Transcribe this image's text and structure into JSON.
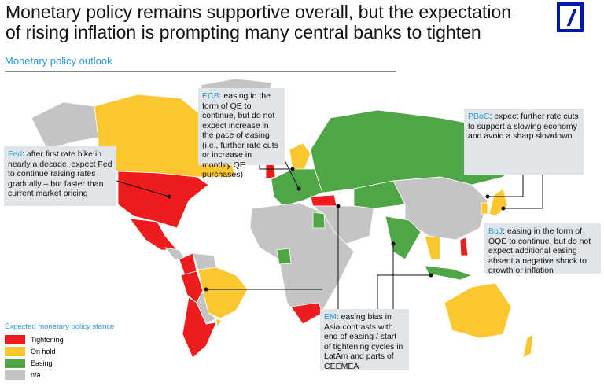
{
  "header": {
    "title": "Monetary policy remains supportive overall, but the expectation of rising inflation is prompting many central banks to tighten",
    "subtitle": "Monetary policy outlook"
  },
  "colors": {
    "tightening": "#ee1c1c",
    "on_hold": "#fcc631",
    "easing": "#4ea646",
    "na": "#c4c4c4",
    "accent": "#2a9bd8",
    "logo": "#0018a8"
  },
  "callouts": {
    "ecb": {
      "key": "ECB",
      "text": ": easing in the form of QE to continue, but do not expect increase in the pace of easing (i.e., further rate cuts or increase in monthly QE purchases)"
    },
    "fed": {
      "key": "Fed",
      "text": ": after first rate hike in nearly a decade, expect Fed to continue raising rates gradually – but faster than current market pricing"
    },
    "pboc": {
      "key": "PBoC",
      "text": ": expect further rate cuts to support a slowing economy and avoid a sharp slowdown"
    },
    "boj": {
      "key": "BoJ",
      "text": ": easing in the form of QQE to continue, but do not expect additional easing absent a negative shock to growth or inflation"
    },
    "em": {
      "key": "EM",
      "text": ": easing bias in Asia contrasts with end of easing / start of tightening cycles in LatAm and parts of CEEMEA"
    }
  },
  "legend": {
    "title": "Expected monetary policy stance",
    "items": [
      {
        "label": "Tightening",
        "color": "#ee1c1c"
      },
      {
        "label": "On hold",
        "color": "#fcc631"
      },
      {
        "label": "Easing",
        "color": "#4ea646"
      },
      {
        "label": "n/a",
        "color": "#c4c4c4"
      }
    ]
  }
}
